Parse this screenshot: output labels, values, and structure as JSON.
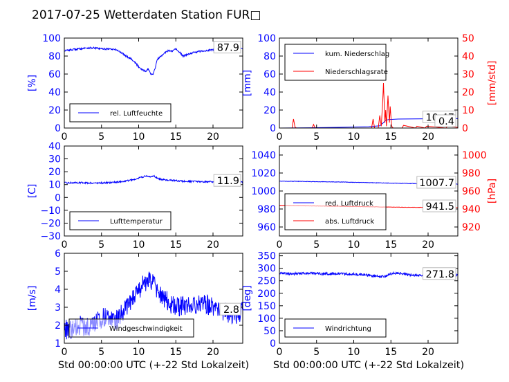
{
  "title": "2017-07-25 Wetterdaten Station FUR□",
  "xlabel": "Std 00:00:00 UTC (+-22 Std Lokalzeit)",
  "chart_data": [
    {
      "id": "humidity",
      "type": "line",
      "ylabel": "[%]",
      "xlim": [
        0,
        24
      ],
      "ylim": [
        0,
        100
      ],
      "xticks": [
        0,
        5,
        10,
        15,
        20
      ],
      "yticks": [
        0,
        20,
        40,
        60,
        80,
        100
      ],
      "last_value": "87.9",
      "legend_location": "lower-left",
      "series": [
        {
          "name": "rel. Luftfeuchte",
          "color": "#0000ff",
          "noise": 1.0,
          "x": [
            0,
            1,
            2,
            3,
            4,
            5,
            6,
            7,
            8,
            8.5,
            9,
            9.5,
            10,
            10.5,
            11,
            11.3,
            11.6,
            11.9,
            12.2,
            12.5,
            13,
            13.5,
            14,
            14.5,
            15,
            15.5,
            16,
            17,
            18,
            19,
            20,
            21,
            22,
            23,
            24
          ],
          "y": [
            86,
            87,
            88,
            89,
            89,
            88,
            88,
            87,
            82,
            79,
            77,
            73,
            68,
            65,
            63,
            66,
            60,
            59,
            66,
            76,
            80,
            84,
            86,
            85,
            88,
            84,
            80,
            83,
            85,
            86,
            87,
            88,
            88,
            88,
            88
          ]
        }
      ]
    },
    {
      "id": "precipitation",
      "type": "line",
      "ylabel": "[mm]",
      "ylabel2": "[mm/std]",
      "xlim": [
        0,
        24
      ],
      "ylim": [
        0,
        100
      ],
      "ylim2": [
        0,
        50
      ],
      "xticks": [
        0,
        5,
        10,
        15,
        20
      ],
      "yticks": [
        0,
        20,
        40,
        60,
        80,
        100
      ],
      "yticks2": [
        0,
        10,
        20,
        30,
        40,
        50
      ],
      "last_value": "10.47",
      "last_value2": "0.4",
      "legend_location": "upper-left",
      "series": [
        {
          "name": "kum. Niederschlag",
          "color": "#0000ff",
          "axis": "left",
          "x": [
            0,
            4,
            8,
            12,
            13.5,
            14,
            14.3,
            14.7,
            16,
            20,
            24
          ],
          "y": [
            0,
            0.3,
            0.8,
            1.5,
            2.5,
            6,
            8.5,
            9.5,
            10,
            10.3,
            10.47
          ]
        },
        {
          "name": "Niederschlagsrate",
          "color": "#ff0000",
          "axis": "right",
          "x": [
            0,
            1.7,
            1.9,
            2.1,
            2.3,
            4.4,
            4.6,
            4.8,
            12.4,
            12.6,
            12.8,
            13.3,
            13.5,
            13.7,
            13.9,
            14.0,
            14.1,
            14.2,
            14.3,
            14.4,
            14.6,
            14.8,
            14.9,
            15.1,
            15.3,
            16.5,
            16.7,
            18.3,
            18.5,
            19.6,
            19.8,
            22.4,
            22.6,
            24
          ],
          "y": [
            0,
            0,
            5,
            0.5,
            0,
            0,
            2,
            0,
            0,
            5,
            0,
            0,
            7,
            1,
            15,
            25,
            13,
            3,
            10,
            1,
            18,
            3,
            12,
            1,
            0,
            0,
            1.5,
            0,
            1,
            0,
            1,
            0,
            1,
            0.4
          ]
        }
      ]
    },
    {
      "id": "temperature",
      "type": "line",
      "ylabel": "[C]",
      "xlim": [
        0,
        24
      ],
      "ylim": [
        -30,
        40
      ],
      "xticks": [
        0,
        5,
        10,
        15,
        20
      ],
      "yticks": [
        -30,
        -20,
        -10,
        0,
        10,
        20,
        30,
        40
      ],
      "last_value": "11.9",
      "legend_location": "lower-left",
      "series": [
        {
          "name": "Lufttemperatur",
          "color": "#0000ff",
          "noise": 0.6,
          "x": [
            0,
            2,
            4,
            6,
            8,
            9,
            10,
            10.5,
            11,
            11.5,
            12,
            12.5,
            13,
            14,
            15,
            16,
            18,
            20,
            22,
            24
          ],
          "y": [
            11.3,
            11.5,
            11.2,
            11.5,
            12.5,
            13.5,
            15,
            16,
            16.5,
            16,
            17,
            15,
            14,
            13.5,
            13,
            12.5,
            12.3,
            12.1,
            12,
            11.9
          ]
        }
      ]
    },
    {
      "id": "pressure",
      "type": "line",
      "ylabel2": "[hPa]",
      "xlim": [
        0,
        24
      ],
      "ylim": [
        950,
        1050
      ],
      "ylim2": [
        910,
        1010
      ],
      "xticks": [
        0,
        5,
        10,
        15,
        20
      ],
      "yticks": [
        960,
        980,
        1000,
        1020,
        1040
      ],
      "yticks2": [
        920,
        940,
        960,
        980,
        1000
      ],
      "last_value": "1007.7",
      "last_value2": "941.5",
      "legend_location": "lower-left",
      "series": [
        {
          "name": "red. Luftdruck",
          "color": "#0000ff",
          "axis": "left",
          "noise": 0.25,
          "x": [
            0,
            4,
            8,
            12,
            16,
            20,
            24
          ],
          "y": [
            1011,
            1010.5,
            1010,
            1009.3,
            1008.6,
            1008,
            1007.7
          ]
        },
        {
          "name": "abs. Luftdruck",
          "color": "#ff0000",
          "axis": "right",
          "noise": 0.2,
          "x": [
            0,
            4,
            8,
            12,
            16,
            20,
            24
          ],
          "y": [
            944,
            943.5,
            943,
            942.5,
            942,
            941.7,
            941.5
          ]
        }
      ]
    },
    {
      "id": "wind_speed",
      "type": "line",
      "ylabel": "[m/s]",
      "xlim": [
        0,
        24
      ],
      "ylim": [
        1,
        6
      ],
      "xticks": [
        0,
        5,
        10,
        15,
        20
      ],
      "yticks": [
        1,
        2,
        3,
        4,
        5,
        6
      ],
      "last_value": "2.8",
      "legend_location": "lower-center",
      "series": [
        {
          "name": "Windgeschwindigkeit",
          "color": "#0000ff",
          "noise": 0.55,
          "x": [
            0,
            1,
            2,
            3,
            4,
            5,
            6,
            7,
            8,
            9,
            10,
            11,
            11.5,
            12,
            13,
            14,
            15,
            16,
            17,
            18,
            19,
            20,
            21,
            22,
            23,
            24
          ],
          "y": [
            1.8,
            1.7,
            2.0,
            1.9,
            2.1,
            2.4,
            2.5,
            2.3,
            2.8,
            3.3,
            4.0,
            4.4,
            4.6,
            4.3,
            3.6,
            3.3,
            3.0,
            3.1,
            3.0,
            3.1,
            3.2,
            3.0,
            2.7,
            2.7,
            2.6,
            2.8
          ]
        }
      ]
    },
    {
      "id": "wind_direction",
      "type": "line",
      "ylabel": "[deg]",
      "xlim": [
        0,
        24
      ],
      "ylim": [
        0,
        360
      ],
      "xticks": [
        0,
        5,
        10,
        15,
        20
      ],
      "yticks": [
        0,
        50,
        100,
        150,
        200,
        250,
        300,
        350
      ],
      "last_value": "271.8",
      "legend_location": "lower-left",
      "series": [
        {
          "name": "Windrichtung",
          "color": "#0000ff",
          "noise": 5,
          "x": [
            0,
            2,
            4,
            6,
            8,
            10,
            12,
            13,
            14,
            15,
            16,
            18,
            20,
            22,
            24
          ],
          "y": [
            280,
            278,
            280,
            278,
            279,
            276,
            272,
            268,
            266,
            278,
            280,
            272,
            270,
            271,
            272
          ]
        }
      ]
    }
  ]
}
